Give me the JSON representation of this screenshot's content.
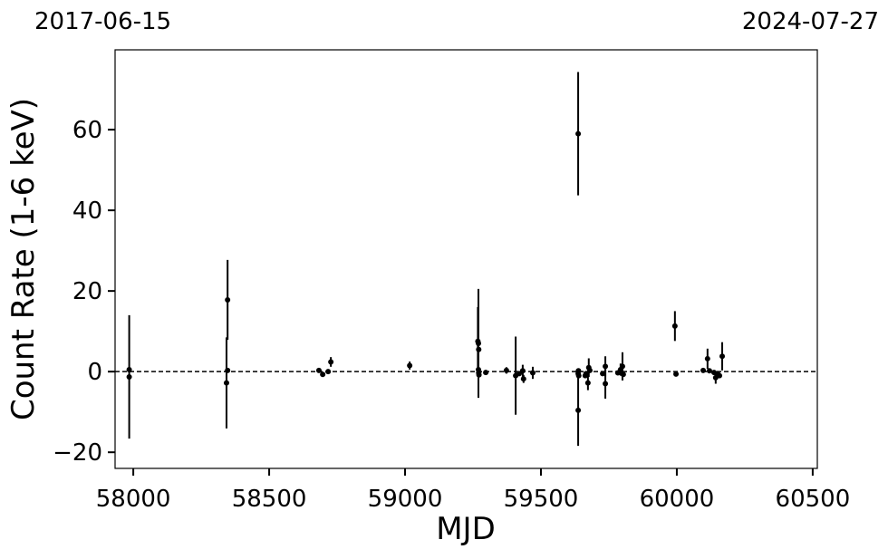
{
  "chart_data": {
    "type": "errorbar-scatter",
    "xlabel": "MJD",
    "ylabel": "Count Rate (1-6 keV)",
    "annotations": [
      "2017-06-15",
      "2024-07-27"
    ],
    "color": "#000000",
    "hline": 0,
    "xlim": [
      57933,
      60517
    ],
    "ylim": [
      -24,
      79.8
    ],
    "xticks": [
      58000,
      58500,
      59000,
      59500,
      60000,
      60500
    ],
    "yticks": [
      {
        "value": -20,
        "label": "−20"
      },
      0,
      20,
      40,
      60
    ],
    "series": [
      {
        "name": "Count Rate",
        "x": [
          57985,
          57985,
          58343,
          58347,
          58347,
          58683,
          58697,
          58717,
          58727,
          59017,
          59268,
          59270,
          59271,
          59270,
          59271,
          59272,
          59297,
          59373,
          59407,
          59420,
          59433,
          59436,
          59470,
          59637,
          59637,
          59637,
          59638,
          59639,
          59663,
          59666,
          59673,
          59676,
          59680,
          59727,
          59737,
          59737,
          59783,
          59793,
          59800,
          59803,
          59993,
          59997,
          60097,
          60113,
          60120,
          60137,
          60143,
          60150,
          60157,
          60167
        ],
        "values": [
          -1.3,
          0.5,
          -2.8,
          17.8,
          0.3,
          0.3,
          -0.7,
          0,
          2.4,
          1.5,
          7.5,
          7,
          5.5,
          0.5,
          -0.3,
          -0.8,
          -0.2,
          0.3,
          -1,
          -0.5,
          0.2,
          -1.8,
          -0.3,
          59,
          -9.6,
          -0.5,
          0.2,
          -1,
          -1,
          -0.5,
          -2.8,
          1,
          0.3,
          -0.5,
          1.3,
          -3,
          -0.3,
          0.5,
          1.3,
          -0.7,
          11.3,
          -0.6,
          0.3,
          3.2,
          0.2,
          -0.2,
          -1.5,
          -0.5,
          -1,
          3.8
        ],
        "errors": [
          15.3,
          0.5,
          11.3,
          9.9,
          0.5,
          0.5,
          0.5,
          0.5,
          1.2,
          1,
          8.5,
          13.5,
          0.5,
          0.5,
          0.5,
          0.5,
          0.5,
          0.8,
          9.7,
          0.5,
          1.5,
          1,
          1.5,
          15.3,
          8.8,
          0.5,
          0.5,
          0.5,
          0.5,
          0.5,
          1.8,
          2.3,
          0.5,
          0.5,
          2.5,
          3.7,
          0.5,
          1.5,
          3.5,
          0.5,
          3.7,
          0.5,
          0.5,
          2.5,
          0.5,
          0.5,
          1.5,
          0.5,
          0.5,
          3.5
        ]
      }
    ]
  }
}
